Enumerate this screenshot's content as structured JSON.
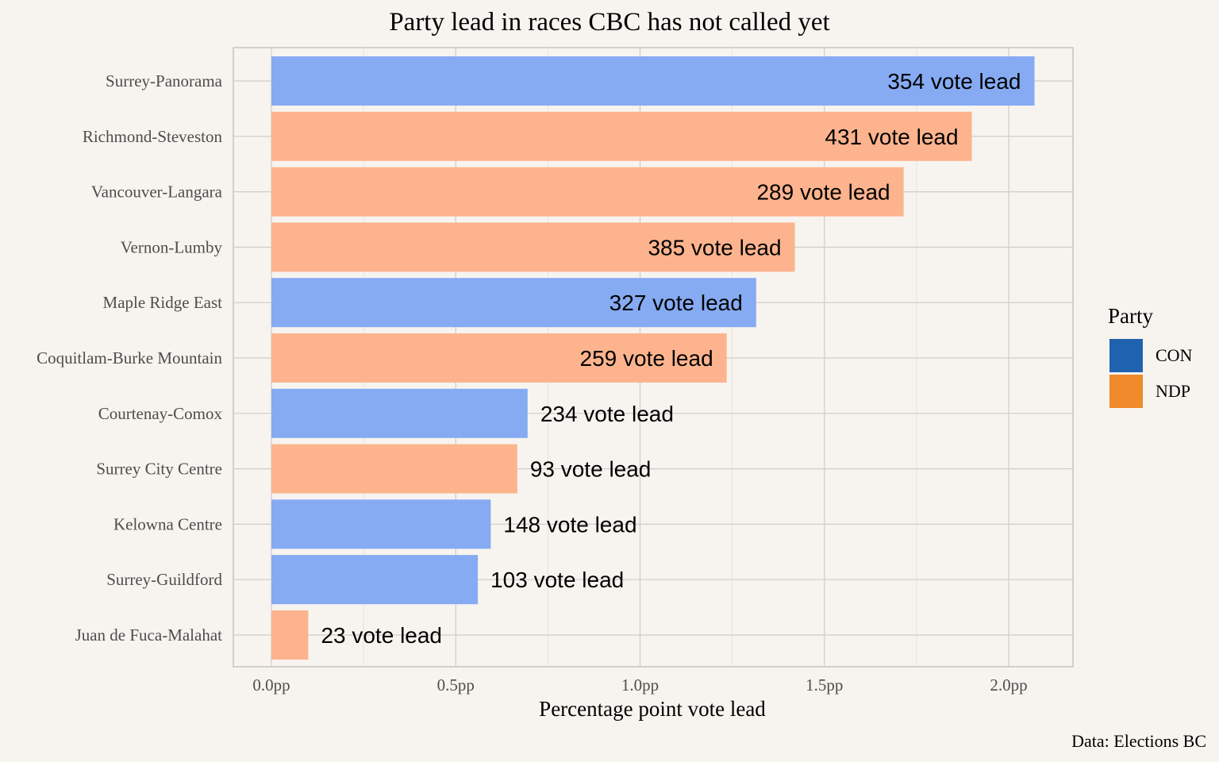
{
  "chart_data": {
    "type": "bar",
    "orientation": "horizontal",
    "title": "Party lead in races CBC has not called yet",
    "xlabel": "Percentage point vote lead",
    "ylabel": "",
    "caption": "Data: Elections BC",
    "xlim": [
      -0.1,
      2.18
    ],
    "x_ticks": [
      0,
      0.5,
      1.0,
      1.5,
      2.0
    ],
    "x_tick_labels": [
      "0.0pp",
      "0.5pp",
      "1.0pp",
      "1.5pp",
      "2.0pp"
    ],
    "grid": true,
    "legend": {
      "title": "Party",
      "position": "right",
      "entries": [
        {
          "label": "CON",
          "color": "#1f63ae"
        },
        {
          "label": "NDP",
          "color": "#f08a2b"
        }
      ]
    },
    "bar_colors": {
      "CON": "#86abf3",
      "NDP": "#fdb48e"
    },
    "categories": [
      "Surrey-Panorama",
      "Richmond-Steveston",
      "Vancouver-Langara",
      "Vernon-Lumby",
      "Maple Ridge East",
      "Coquitlam-Burke Mountain",
      "Courtenay-Comox",
      "Surrey City Centre",
      "Kelowna Centre",
      "Surrey-Guildford",
      "Juan de Fuca-Malahat"
    ],
    "values": [
      2.07,
      1.9,
      1.715,
      1.42,
      1.315,
      1.235,
      0.695,
      0.667,
      0.595,
      0.56,
      0.1
    ],
    "party": [
      "CON",
      "NDP",
      "NDP",
      "NDP",
      "CON",
      "NDP",
      "CON",
      "NDP",
      "CON",
      "CON",
      "NDP"
    ],
    "data_labels": [
      "354 vote lead",
      "431 vote lead",
      "289 vote lead",
      "385 vote lead",
      "327 vote lead",
      "259 vote lead",
      "234 vote lead",
      "93 vote lead",
      "148 vote lead",
      "103 vote lead",
      "23 vote lead"
    ]
  }
}
